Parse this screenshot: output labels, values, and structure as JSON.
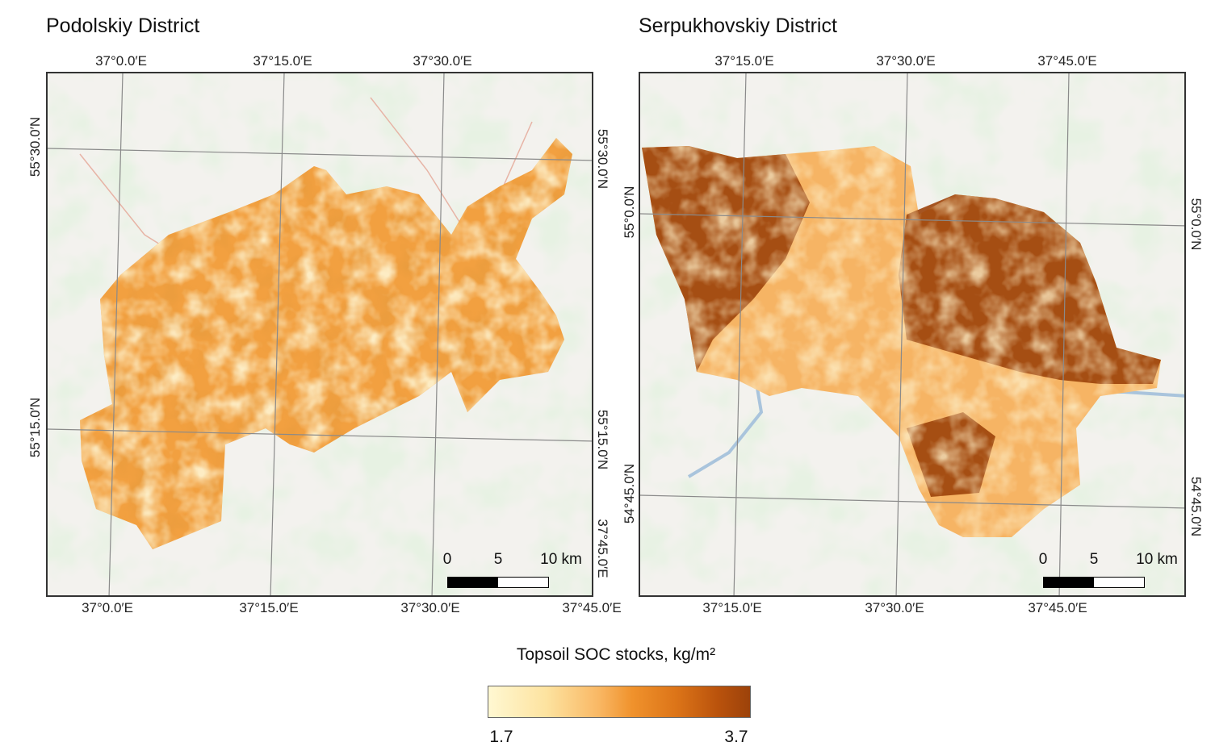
{
  "panels": [
    {
      "title": "Podolskiy District",
      "top_lon_labels": [
        "37°0.0′E",
        "37°15.0′E",
        "37°30.0′E"
      ],
      "bottom_lon_labels": [
        "37°0.0′E",
        "37°15.0′E",
        "37°30.0′E",
        "37°45.0′E"
      ],
      "left_lat_labels": [
        "55°30.0′N",
        "55°15.0′N"
      ],
      "right_lat_labels": [
        "55°30.0′N",
        "55°15.0′N",
        "37°45.0′E"
      ],
      "scale": {
        "labels": [
          "0",
          "5",
          "10 km"
        ]
      }
    },
    {
      "title": "Serpukhovskiy District",
      "top_lon_labels": [
        "37°15.0′E",
        "37°30.0′E",
        "37°45.0′E"
      ],
      "bottom_lon_labels": [
        "37°15.0′E",
        "37°30.0′E",
        "37°45.0′E"
      ],
      "left_lat_labels": [
        "55°0.0′N",
        "54°45.0′N"
      ],
      "right_lat_labels": [
        "55°0.0′N",
        "54°45.0′N"
      ],
      "scale": {
        "labels": [
          "0",
          "5",
          "10 km"
        ]
      }
    }
  ],
  "legend": {
    "title": "Topsoil SOC stocks, kg/m²",
    "min": "1.7",
    "max": "3.7",
    "colors": [
      "#fff8d2",
      "#f0922c",
      "#9c420a"
    ]
  },
  "colors": {
    "forest": "#cfe3c4",
    "urban": "#f4f2ee",
    "grid": "#8a8a8a",
    "river": "#a9c4dc"
  }
}
